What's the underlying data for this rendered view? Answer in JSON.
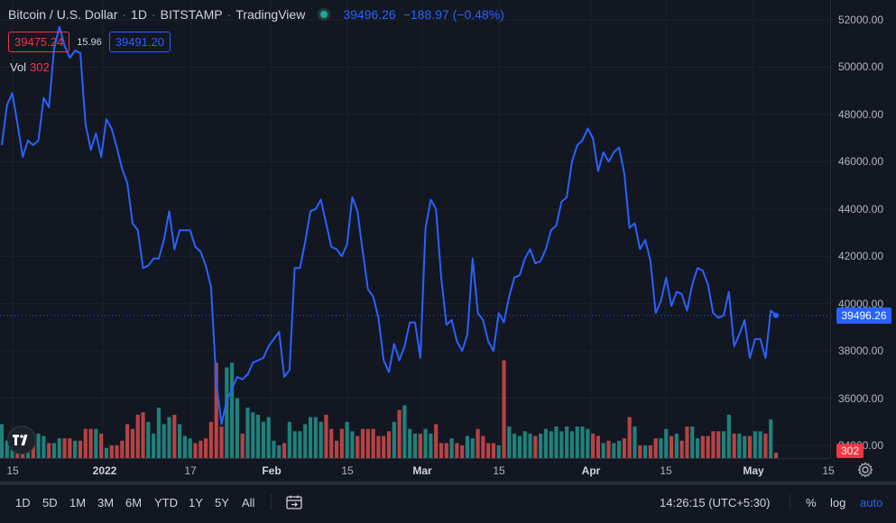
{
  "header": {
    "symbol": "Bitcoin / U.S. Dollar",
    "interval": "1D",
    "exchange": "BITSTAMP",
    "source": "TradingView",
    "last_price": "39496.26",
    "change": "−188.97 (−0.48%)",
    "bid": "39475.24",
    "spread": "15.96",
    "ask": "39491.20",
    "vol_label": "Vol",
    "vol_value": "302"
  },
  "price_axis": {
    "labels": [
      "52000.00",
      "50000.00",
      "48000.00",
      "46000.00",
      "44000.00",
      "42000.00",
      "40000.00",
      "38000.00",
      "36000.00",
      "34000.00"
    ],
    "last_price_tag": "39496.26",
    "volume_tag": "302"
  },
  "time_axis": {
    "labels": [
      {
        "text": "15",
        "bold": false
      },
      {
        "text": "2022",
        "bold": true
      },
      {
        "text": "17",
        "bold": false
      },
      {
        "text": "Feb",
        "bold": true
      },
      {
        "text": "15",
        "bold": false
      },
      {
        "text": "Mar",
        "bold": true
      },
      {
        "text": "15",
        "bold": false
      },
      {
        "text": "Apr",
        "bold": true
      },
      {
        "text": "15",
        "bold": false
      },
      {
        "text": "May",
        "bold": true
      },
      {
        "text": "15",
        "bold": false
      }
    ]
  },
  "bottom_bar": {
    "ranges": [
      "1D",
      "5D",
      "1M",
      "3M",
      "6M",
      "YTD",
      "1Y",
      "5Y",
      "All"
    ],
    "time": "14:26:15 (UTC+5:30)",
    "percent": "%",
    "log": "log",
    "auto": "auto"
  },
  "colors": {
    "background": "#131722",
    "line": "#2962ff",
    "up_volume": "#26a69a",
    "down_volume": "#ef5350",
    "grid": "#1e222d"
  },
  "chart_data": {
    "type": "line",
    "title": "Bitcoin / U.S. Dollar · 1D · BITSTAMP",
    "ylim": [
      33500,
      52800
    ],
    "series": [
      {
        "name": "",
        "values": [
          46700,
          48400,
          48900,
          47600,
          46200,
          46900,
          46700,
          46900,
          48700,
          48300,
          50800,
          51700,
          50900,
          50400,
          50700,
          50600,
          47600,
          46500,
          47200,
          46200,
          47800,
          47400,
          46600,
          45700,
          45100,
          43400,
          43100,
          41500,
          41600,
          41900,
          41900,
          42700,
          43900,
          42300,
          43100,
          43100,
          43100,
          42400,
          42200,
          41600,
          40700,
          36700,
          34900,
          35900,
          36400,
          36900,
          36800,
          37000,
          37500,
          37600,
          37700,
          38200,
          38500,
          38800,
          36900,
          37200,
          41500,
          41500,
          42600,
          43900,
          44000,
          44400,
          43400,
          42400,
          42300,
          42000,
          42500,
          44500,
          43900,
          42200,
          40600,
          40300,
          39400,
          37600,
          37100,
          38300,
          37600,
          38200,
          39200,
          39200,
          37700,
          43200,
          44400,
          44000,
          41100,
          39100,
          39300,
          38400,
          38000,
          38700,
          41900,
          39600,
          39300,
          38400,
          38000,
          39600,
          39200,
          40300,
          41100,
          41200,
          41900,
          42300,
          41700,
          41800,
          42300,
          43100,
          43300,
          44300,
          44500,
          46000,
          46700,
          46900,
          47400,
          47000,
          45600,
          46400,
          46000,
          46400,
          46600,
          45500,
          43200,
          43400,
          42300,
          42700,
          41800,
          39600,
          40100,
          41100,
          39900,
          40500,
          40400,
          39700,
          40800,
          41500,
          41400,
          40800,
          39600,
          39400,
          39500,
          40500,
          38200,
          38700,
          39300,
          37700,
          38500,
          38500,
          37700,
          39700,
          39500
        ]
      },
      {
        "name": "",
        "values": [
          34900,
          34200,
          34600,
          34400,
          34500,
          34300,
          34300,
          34500,
          34400,
          34100,
          34100,
          34300,
          34300,
          34300,
          34200,
          34200,
          34700,
          34700,
          34700,
          34500,
          33900,
          34000,
          34000,
          34200,
          34900,
          34700,
          35300,
          35400,
          35000,
          34500,
          35600,
          34900,
          35200,
          35300,
          34900,
          34400,
          34300,
          34100,
          34200,
          34300,
          35000,
          37500,
          34800,
          37300,
          37500,
          36000,
          34500,
          35600,
          35400,
          35300,
          35000,
          35200,
          34200,
          34000,
          34100,
          35000,
          34600,
          34600,
          34900,
          35200,
          35200,
          35000,
          35300,
          34700,
          34200,
          34700,
          35000,
          34600,
          34400,
          34700,
          34700,
          34700,
          34400,
          34400,
          34600,
          35000,
          35500,
          35700,
          34700,
          34500,
          34500,
          34700,
          34500,
          34900,
          34100,
          34100,
          34300,
          34100,
          34000,
          34400,
          34300,
          34700,
          34400,
          34100,
          34100,
          34000,
          37600,
          34800,
          34500,
          34400,
          34600,
          34500,
          34400,
          34500,
          34700,
          34600,
          34800,
          34600,
          34800,
          34600,
          34800,
          34800,
          34700,
          34500,
          34400,
          34100,
          34200,
          34100,
          34200,
          34300,
          35200,
          34800,
          34000,
          34000,
          34000,
          34300,
          34300,
          34700,
          34400,
          34500,
          34200,
          34800,
          34800,
          34300,
          34400,
          34400,
          34600,
          34600,
          34600,
          35300,
          34500,
          34500,
          34400,
          34400,
          34600,
          34600,
          34500,
          35100,
          33700
        ]
      }
    ]
  }
}
